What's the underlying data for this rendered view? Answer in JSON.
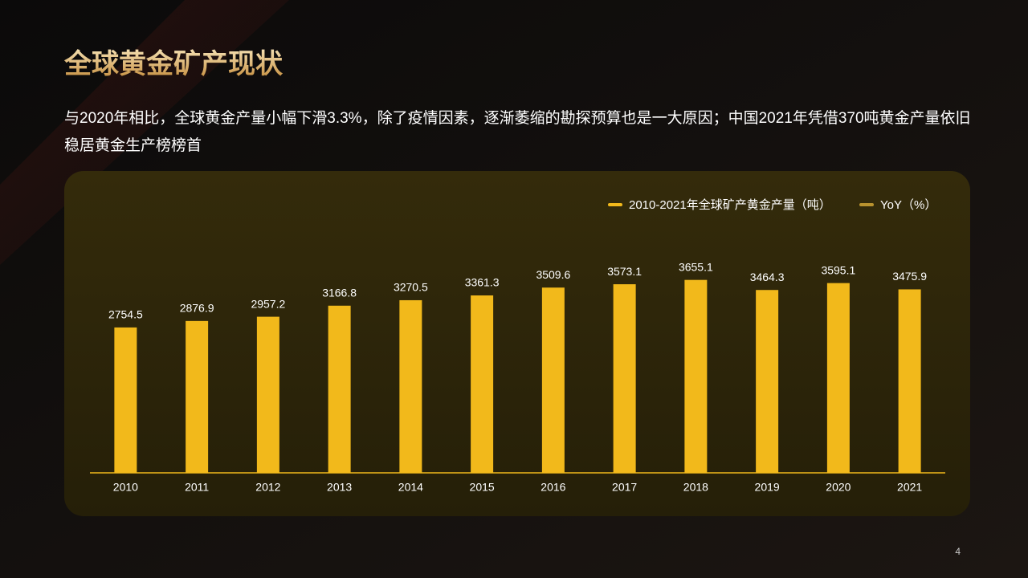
{
  "chart_data": {
    "type": "bar",
    "title": "全球黄金矿产现状",
    "subtitle": [
      "与2020年相比，全球黄金产量小幅下滑3.3%，除了疫情因素，逐渐萎缩的勘探预算也是一大原因；中国2021年凭借370吨黄金产量依旧",
      "稳居黄金生产榜榜首"
    ],
    "categories": [
      "2010",
      "2011",
      "2012",
      "2013",
      "2014",
      "2015",
      "2016",
      "2017",
      "2018",
      "2019",
      "2020",
      "2021"
    ],
    "series": [
      {
        "name": "2010-2021年全球矿产黄金产量（吨）",
        "color": "#f2b91b",
        "values": [
          2754.5,
          2876.9,
          2957.2,
          3166.8,
          3270.5,
          3361.3,
          3509.6,
          3573.1,
          3655.1,
          3464.3,
          3595.1,
          3475.9
        ]
      },
      {
        "name": "YoY（%）",
        "color": "#b8922e",
        "values": [
          null,
          null,
          null,
          null,
          null,
          null,
          null,
          null,
          null,
          null,
          null,
          null
        ]
      }
    ],
    "ylim": [
      0,
      4000
    ],
    "page_number": "4"
  }
}
